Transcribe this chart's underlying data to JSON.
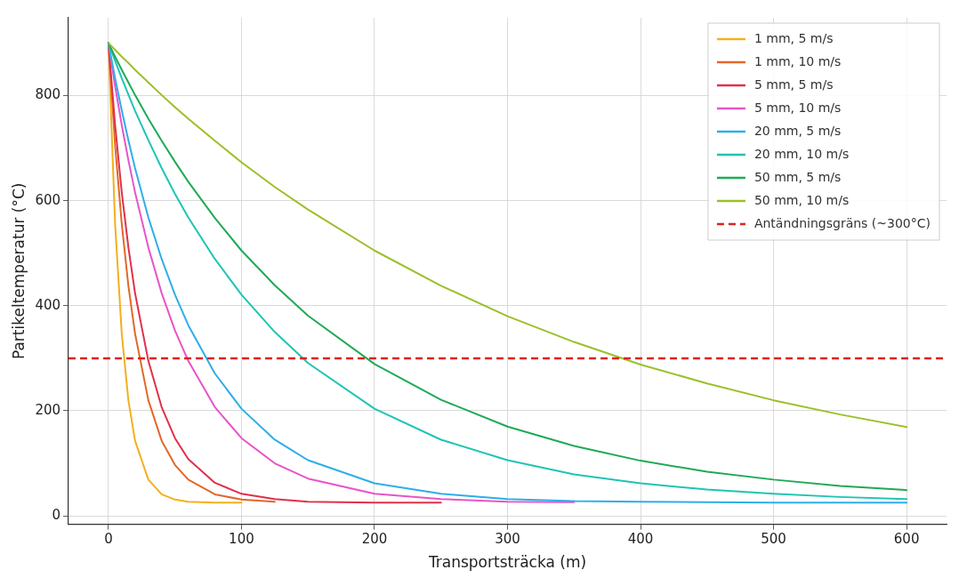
{
  "chart_data": {
    "type": "line",
    "xlabel": "Transportsträcka (m)",
    "ylabel": "Partikeltemperatur (°C)",
    "x": [
      0,
      5,
      10,
      15,
      20,
      30,
      40,
      50,
      60,
      80,
      100,
      125,
      150,
      200,
      250,
      300,
      350,
      400,
      450,
      500,
      550,
      600
    ],
    "series": [
      {
        "name": "1 mm, 5 m/s",
        "color": "#f2b01e",
        "values": [
          900,
          556,
          347,
          220,
          143,
          69,
          41,
          31,
          27,
          25,
          25,
          null,
          null,
          null,
          null,
          null,
          null,
          null,
          null,
          null,
          null,
          null
        ]
      },
      {
        "name": "1 mm, 10 m/s",
        "color": "#e3672a",
        "values": [
          900,
          706,
          556,
          438,
          347,
          220,
          143,
          97,
          69,
          41,
          31,
          27,
          null,
          null,
          null,
          null,
          null,
          null,
          null,
          null,
          null,
          null
        ]
      },
      {
        "name": "5 mm, 5 m/s",
        "color": "#e0304a",
        "values": [
          900,
          744,
          616,
          511,
          424,
          295,
          207,
          148,
          108,
          63,
          42,
          32,
          27,
          25,
          25,
          null,
          null,
          null,
          null,
          null,
          null,
          null
        ]
      },
      {
        "name": "5 mm, 10 m/s",
        "color": "#e854c8",
        "values": [
          900,
          818,
          744,
          677,
          616,
          511,
          424,
          353,
          295,
          207,
          148,
          100,
          71,
          42,
          32,
          27,
          26,
          null,
          null,
          null,
          null,
          null
        ]
      },
      {
        "name": "20 mm, 5 m/s",
        "color": "#2eaee8",
        "values": [
          900,
          833,
          772,
          715,
          662,
          568,
          489,
          421,
          363,
          271,
          204,
          145,
          106,
          62,
          42,
          32,
          28,
          27,
          26,
          25,
          25,
          25
        ]
      },
      {
        "name": "20 mm, 10 m/s",
        "color": "#1fc4b4",
        "values": [
          900,
          866,
          833,
          802,
          771,
          715,
          662,
          613,
          568,
          489,
          421,
          350,
          291,
          204,
          145,
          106,
          79,
          62,
          50,
          42,
          36,
          32
        ]
      },
      {
        "name": "50 mm, 5 m/s",
        "color": "#1faa55",
        "values": [
          900,
          874,
          849,
          825,
          801,
          756,
          714,
          674,
          636,
          567,
          505,
          439,
          381,
          289,
          221,
          170,
          133,
          105,
          84,
          69,
          57,
          49
        ]
      },
      {
        "name": "50 mm, 10 m/s",
        "color": "#9cbf2a",
        "values": [
          900,
          887,
          874,
          862,
          849,
          825,
          801,
          778,
          756,
          714,
          673,
          626,
          583,
          505,
          438,
          380,
          331,
          288,
          252,
          220,
          193,
          169
        ]
      }
    ],
    "ref_lines": [
      {
        "axis": "y",
        "value": 300,
        "label": "Antändningsgräns (~300°C)",
        "color": "#e02020",
        "line_style": "dashed"
      }
    ],
    "xlim": [
      -30,
      630
    ],
    "ylim": [
      -16,
      948
    ],
    "xticks": [
      0,
      100,
      200,
      300,
      400,
      500,
      600
    ],
    "yticks": [
      0,
      200,
      400,
      600,
      800
    ],
    "grid": true,
    "legend": "top right",
    "marker": "none",
    "line_style": "solid"
  }
}
